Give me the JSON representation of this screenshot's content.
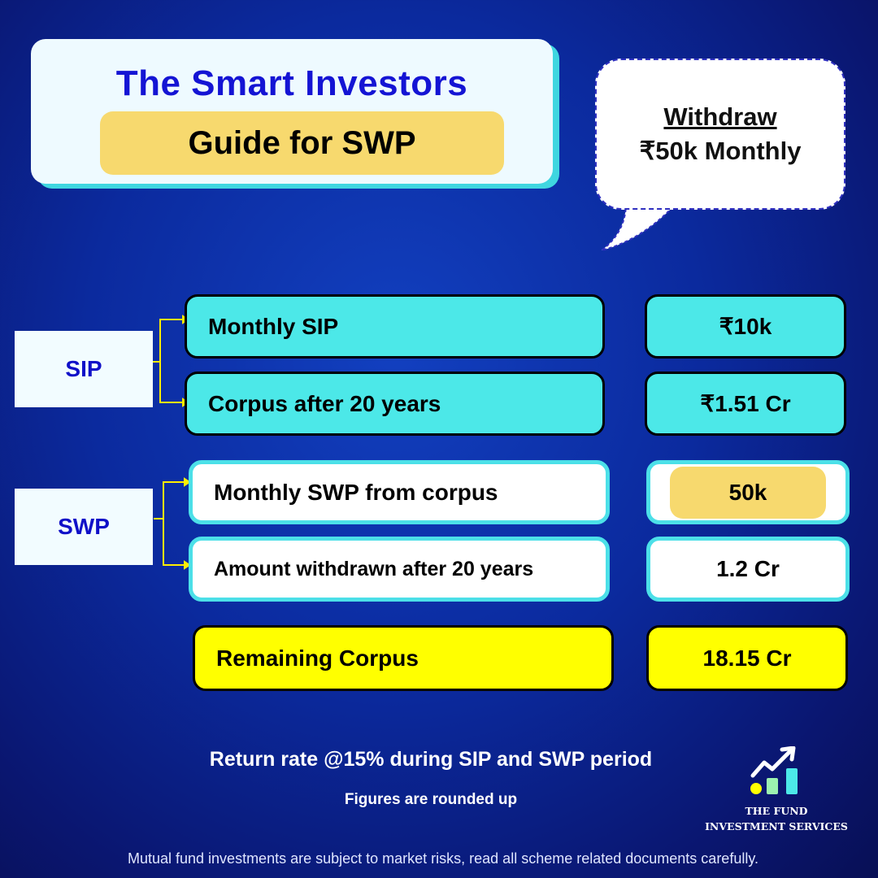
{
  "header": {
    "title": "The Smart Investors",
    "subtitle": "Guide for SWP"
  },
  "bubble": {
    "line1": "Withdraw",
    "line2": "₹50k Monthly"
  },
  "groups": {
    "sip": "SIP",
    "swp": "SWP"
  },
  "rows": [
    {
      "label": "Monthly SIP",
      "value": "₹10k"
    },
    {
      "label": "Corpus after 20 years",
      "value": "₹1.51 Cr"
    },
    {
      "label": "Monthly SWP from corpus",
      "value": "50k"
    },
    {
      "label": "Amount withdrawn after 20 years",
      "value": "1.2 Cr"
    },
    {
      "label": "Remaining Corpus",
      "value": "18.15 Cr"
    }
  ],
  "footer": {
    "return_rate": "Return rate @15% during SIP and SWP period",
    "note": "Figures are rounded up",
    "disclaimer": "Mutual fund investments are subject to market risks, read all scheme related documents carefully."
  },
  "logo": {
    "line1": "THE FUND",
    "line2": "INVESTMENT SERVICES"
  },
  "colors": {
    "cyan": "#4ce8e8",
    "yellow": "#ffff00",
    "gold": "#f7d96e",
    "blue": "#1414d4"
  }
}
